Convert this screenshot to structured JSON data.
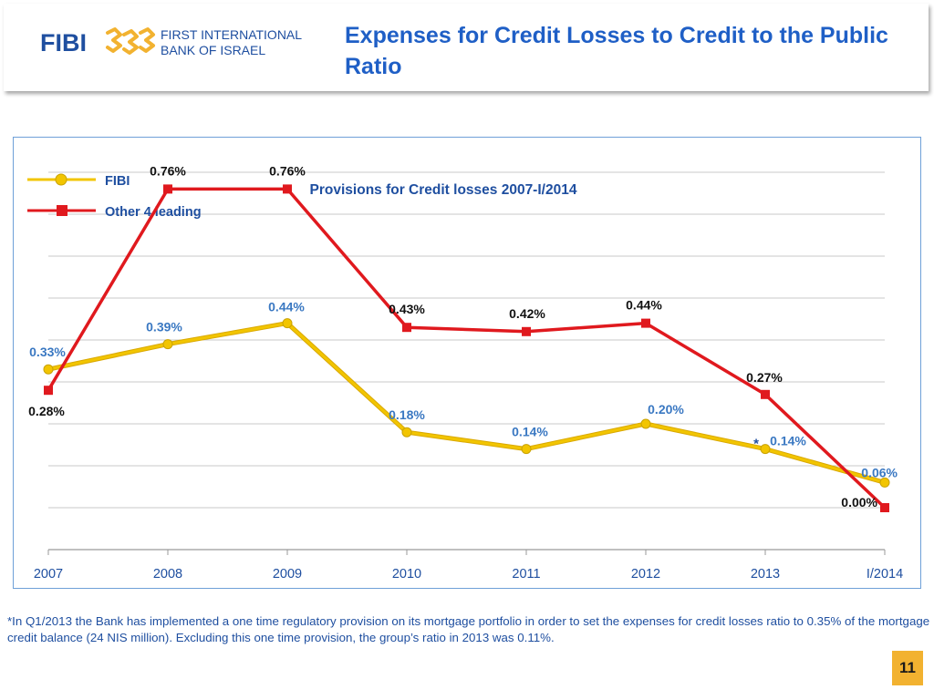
{
  "header": {
    "logo_short": "FIBI",
    "logo_name_line1": "FIRST INTERNATIONAL",
    "logo_name_line2": "BANK OF ISRAEL",
    "title": "Expenses for Credit Losses to Credit  to the Public Ratio",
    "logo_icon": "three-gold-interlocking-shapes-icon",
    "accent_color": "#f2b230",
    "brand_color": "#1f4fa0"
  },
  "chart_data": {
    "type": "line",
    "title": "Provisions for Credit losses 2007-I/2014",
    "categories": [
      "2007",
      "2008",
      "2009",
      "2010",
      "2011",
      "2012",
      "2013",
      "I/2014"
    ],
    "ylim": [
      -0.1,
      0.85
    ],
    "grid": true,
    "legend_position": "top-left",
    "series": [
      {
        "name": "FIBI",
        "color": "#f2c500",
        "marker": "circle",
        "values": [
          0.33,
          0.39,
          0.44,
          0.18,
          0.14,
          0.2,
          0.14,
          0.06
        ],
        "labels": [
          "0.33%",
          "0.39%",
          "0.44%",
          "0.18%",
          "0.14%",
          "0.20%",
          "0.14%",
          "0.06%"
        ]
      },
      {
        "name": "Other  4 leading",
        "color": "#e0191e",
        "marker": "square",
        "values": [
          0.28,
          0.76,
          0.76,
          0.43,
          0.42,
          0.44,
          0.27,
          0.0
        ],
        "labels": [
          "0.28%",
          "0.76%",
          "0.76%",
          "0.43%",
          "0.42%",
          "0.44%",
          "0.27%",
          "0.00%"
        ]
      }
    ],
    "annotation": "*"
  },
  "footnote": "*In Q1/2013 the Bank has implemented a one time regulatory provision on its mortgage portfolio in order to set  the expenses for credit losses ratio to 0.35% of the mortgage credit balance (24 NIS million). Excluding this one time provision,  the group’s ratio in 2013  was 0.11%.",
  "page_number": "11"
}
